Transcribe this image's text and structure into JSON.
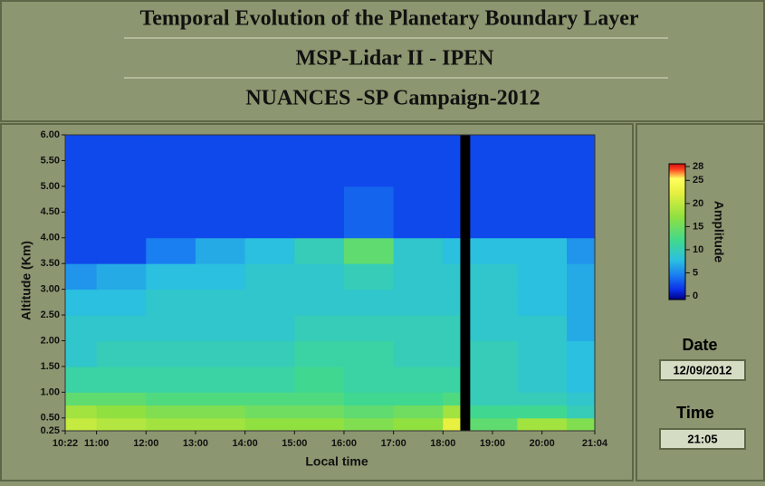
{
  "header": {
    "title": "Temporal Evolution of the Planetary Boundary Layer",
    "subtitle": "MSP-Lidar II - IPEN",
    "campaign": "NUANCES -SP Campaign-2012"
  },
  "chart_data": {
    "type": "heatmap",
    "xlabel": "Local time",
    "ylabel": "Altitude (Km)",
    "xlim": [
      10.367,
      21.067
    ],
    "xticks": [
      {
        "value": 10.367,
        "label": "10:22"
      },
      {
        "value": 11,
        "label": "11:00"
      },
      {
        "value": 12,
        "label": "12:00"
      },
      {
        "value": 13,
        "label": "13:00"
      },
      {
        "value": 14,
        "label": "14:00"
      },
      {
        "value": 15,
        "label": "15:00"
      },
      {
        "value": 16,
        "label": "16:00"
      },
      {
        "value": 17,
        "label": "17:00"
      },
      {
        "value": 18,
        "label": "18:00"
      },
      {
        "value": 19,
        "label": "19:00"
      },
      {
        "value": 20,
        "label": "20:00"
      },
      {
        "value": 21.067,
        "label": "21:04"
      }
    ],
    "ylim": [
      0.25,
      6.0
    ],
    "yticks": [
      {
        "value": 0.25,
        "label": "0.25"
      },
      {
        "value": 0.5,
        "label": "0.50"
      },
      {
        "value": 1,
        "label": "1.00"
      },
      {
        "value": 1.5,
        "label": "1.50"
      },
      {
        "value": 2,
        "label": "2.00"
      },
      {
        "value": 2.5,
        "label": "2.50"
      },
      {
        "value": 3,
        "label": "3.00"
      },
      {
        "value": 3.5,
        "label": "3.50"
      },
      {
        "value": 4,
        "label": "4.00"
      },
      {
        "value": 4.5,
        "label": "4.50"
      },
      {
        "value": 5,
        "label": "5.00"
      },
      {
        "value": 5.5,
        "label": "5.50"
      },
      {
        "value": 6,
        "label": "6.00"
      }
    ],
    "x_edges": [
      10.367,
      11,
      12,
      13,
      14,
      15,
      16,
      17,
      18,
      18.35,
      18.55,
      19.5,
      20.5,
      21.067
    ],
    "y_edges": [
      0.25,
      0.5,
      0.75,
      1.0,
      1.5,
      2.0,
      2.5,
      3.0,
      3.5,
      4.0,
      5.0,
      6.0
    ],
    "values": [
      [
        20,
        19,
        18,
        18,
        17,
        17,
        16,
        17,
        22,
        null,
        14,
        18,
        16
      ],
      [
        18,
        17,
        16,
        16,
        15,
        15,
        14,
        15,
        18,
        null,
        12,
        12,
        10
      ],
      [
        14,
        14,
        13,
        13,
        13,
        13,
        12,
        12,
        13,
        null,
        10,
        10,
        9
      ],
      [
        11,
        11,
        11,
        11,
        11,
        12,
        11,
        11,
        11,
        null,
        10,
        9,
        8
      ],
      [
        9,
        10,
        10,
        10,
        10,
        11,
        11,
        10,
        10,
        null,
        10,
        9,
        8
      ],
      [
        9,
        9,
        9,
        9,
        9,
        10,
        10,
        10,
        10,
        null,
        9,
        9,
        7
      ],
      [
        8,
        8,
        9,
        9,
        9,
        9,
        9,
        9,
        9,
        null,
        9,
        8,
        7
      ],
      [
        6,
        7,
        8,
        8,
        9,
        9,
        10,
        9,
        9,
        null,
        9,
        8,
        7
      ],
      [
        3,
        3,
        5,
        7,
        8,
        10,
        14,
        9,
        8,
        null,
        8,
        8,
        6
      ],
      [
        3,
        3,
        3,
        3,
        3,
        3,
        4,
        3,
        3,
        null,
        3,
        3,
        3
      ],
      [
        3,
        3,
        3,
        3,
        3,
        3,
        3,
        3,
        3,
        null,
        3,
        3,
        3
      ]
    ],
    "colorbar": {
      "label": "Amplitude",
      "zlim": [
        0,
        28
      ],
      "ticks": [
        0,
        5,
        10,
        15,
        20,
        25,
        28
      ]
    }
  },
  "fields": {
    "date_label": "Date",
    "date": "12/09/2012",
    "time_label": "Time",
    "time": "21:05"
  }
}
